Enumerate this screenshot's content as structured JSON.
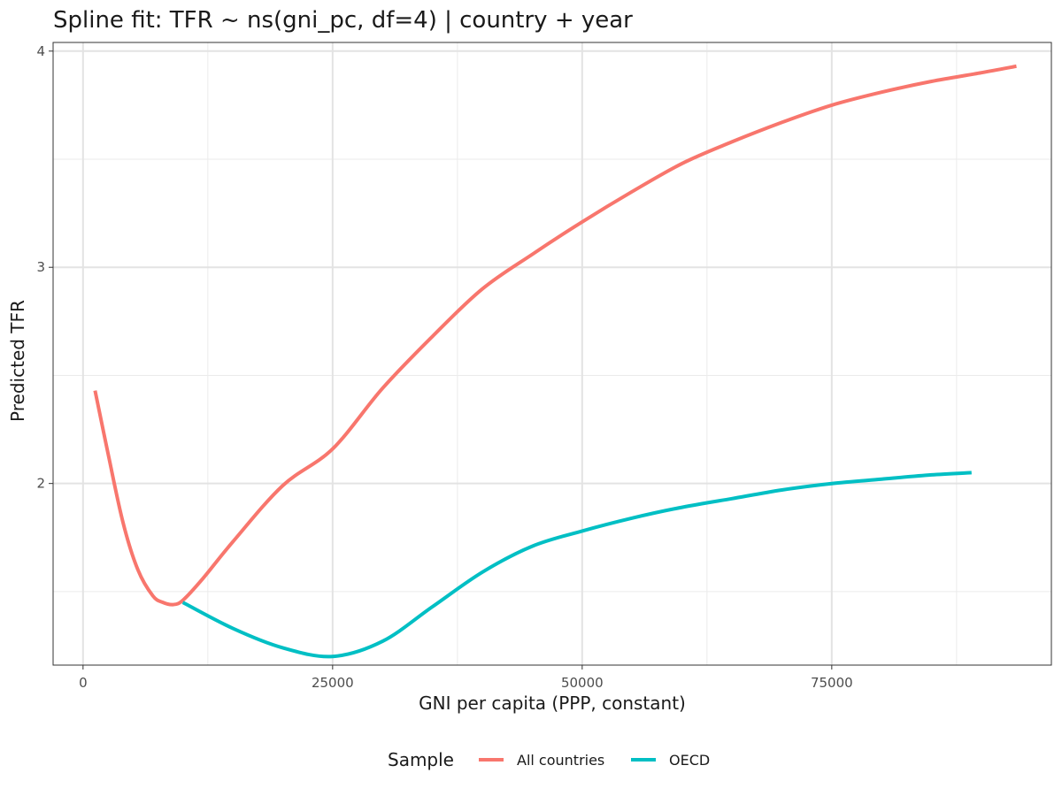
{
  "chart_data": {
    "type": "line",
    "title": "Spline fit: TFR ~ ns(gni_pc, df=4) | country + year",
    "xlabel": "GNI per capita (PPP, constant)",
    "ylabel": "Predicted TFR",
    "xlim": [
      -3000,
      97000
    ],
    "ylim": [
      1.16,
      4.04
    ],
    "x_ticks": [
      0,
      25000,
      50000,
      75000
    ],
    "x_tick_labels": [
      "0",
      "25000",
      "50000",
      "75000"
    ],
    "x_minor_ticks": [
      12500,
      37500,
      62500,
      87500
    ],
    "y_ticks": [
      2,
      3,
      4
    ],
    "y_tick_labels": [
      "2",
      "3",
      "4"
    ],
    "y_minor_ticks": [
      1.5,
      2.5,
      3.5
    ],
    "legend": {
      "title": "Sample",
      "position": "bottom"
    },
    "series": [
      {
        "name": "All countries",
        "color": "#F8766D",
        "x": [
          1200,
          2500,
          4000,
          5500,
          7000,
          8000,
          9000,
          10000,
          12000,
          15000,
          20000,
          25000,
          30000,
          35000,
          40000,
          45000,
          50000,
          55000,
          60000,
          65000,
          70000,
          75000,
          80000,
          85000,
          90000,
          93500
        ],
        "y": [
          2.43,
          2.14,
          1.82,
          1.6,
          1.48,
          1.45,
          1.44,
          1.46,
          1.56,
          1.73,
          1.99,
          2.16,
          2.44,
          2.68,
          2.9,
          3.06,
          3.21,
          3.35,
          3.48,
          3.58,
          3.67,
          3.75,
          3.81,
          3.86,
          3.9,
          3.93
        ]
      },
      {
        "name": "OECD",
        "color": "#00BFC4",
        "x": [
          10000,
          15000,
          20000,
          25000,
          30000,
          35000,
          40000,
          45000,
          50000,
          55000,
          60000,
          65000,
          70000,
          75000,
          80000,
          85000,
          89000
        ],
        "y": [
          1.45,
          1.33,
          1.24,
          1.2,
          1.27,
          1.43,
          1.59,
          1.71,
          1.78,
          1.84,
          1.89,
          1.93,
          1.97,
          2.0,
          2.02,
          2.04,
          2.05
        ]
      }
    ]
  }
}
